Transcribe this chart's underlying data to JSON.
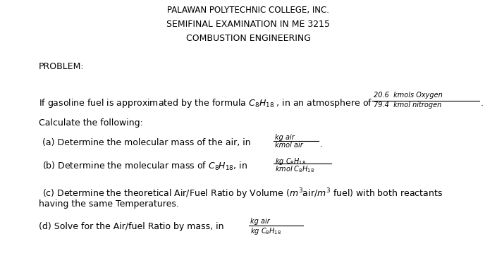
{
  "bg_color": "#ffffff",
  "text_color": "#000000",
  "figsize": [
    7.05,
    3.93
  ],
  "dpi": 100,
  "header": "PALAWAN POLYTECHNIC COLLEGE, INC.",
  "title1": "SEMIFINAL EXAMINATION IN ME 3215",
  "title2": "COMBUSTION ENGINEERING"
}
